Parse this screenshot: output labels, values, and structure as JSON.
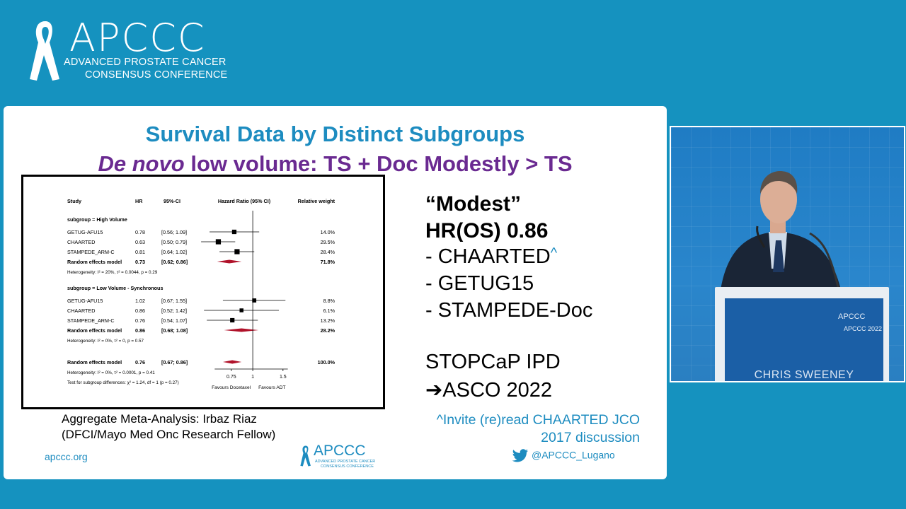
{
  "brand": {
    "name": "APCCC",
    "line1": "ADVANCED PROSTATE CANCER",
    "line2": "CONSENSUS CONFERENCE"
  },
  "slide": {
    "title": "Survival Data by Distinct Subgroups",
    "subtitle_italic": "De novo",
    "subtitle_rest": " low volume: TS + Doc Modestly > TS",
    "right_modest": "“Modest”",
    "right_hr": "HR(OS) 0.86",
    "right_b1": "- CHAARTED",
    "right_b1_caret": "^",
    "right_b2": "- GETUG15",
    "right_b3": "- STAMPEDE-Doc",
    "right_stop": "STOPCaP IPD",
    "right_asco": "➔ASCO 2022",
    "invite_l1": "^Invite (re)read CHAARTED JCO",
    "invite_l2": "2017 discussion",
    "caption_l1": "Aggregate Meta-Analysis: Irbaz Riaz",
    "caption_l2": "(DFCI/Mayo Med Onc Research Fellow)",
    "footer_url": "apccc.org",
    "footer_logo_big": "APCCC",
    "footer_logo_l1": "ADVANCED PROSTATE CANCER",
    "footer_logo_l2": "CONSENSUS CONFERENCE",
    "twitter": "@APCCC_Lugano"
  },
  "forest_plot": {
    "headers": {
      "study": "Study",
      "hr": "HR",
      "ci": "95%-CI",
      "plot": "Hazard Ratio (95% CI)",
      "weight": "Relative weight"
    },
    "groups": [
      {
        "label": "subgroup = High Volume",
        "rows": [
          {
            "study": "GETUG-AFU15",
            "hr": "0.78",
            "ci": "[0.56; 1.09]",
            "weight": "14.0%",
            "est": 0.78,
            "lo": 0.56,
            "hi": 1.09
          },
          {
            "study": "CHAARTED",
            "hr": "0.63",
            "ci": "[0.50; 0.79]",
            "weight": "29.5%",
            "est": 0.63,
            "lo": 0.5,
            "hi": 0.79
          },
          {
            "study": "STAMPEDE_ARM-C",
            "hr": "0.81",
            "ci": "[0.64; 1.02]",
            "weight": "28.4%",
            "est": 0.81,
            "lo": 0.64,
            "hi": 1.02
          }
        ],
        "pooled": {
          "label": "Random effects model",
          "hr": "0.73",
          "ci": "[0.62; 0.86]",
          "weight": "71.8%",
          "est": 0.73,
          "lo": 0.62,
          "hi": 0.86
        },
        "het": "Heterogeneity: I² = 20%, τ² = 0.0044, p = 0.29"
      },
      {
        "label": "subgroup = Low Volume - Synchronous",
        "rows": [
          {
            "study": "GETUG-AFU15",
            "hr": "1.02",
            "ci": "[0.67; 1.55]",
            "weight": "8.8%",
            "est": 1.02,
            "lo": 0.67,
            "hi": 1.55
          },
          {
            "study": "CHAARTED",
            "hr": "0.86",
            "ci": "[0.52; 1.42]",
            "weight": "6.1%",
            "est": 0.86,
            "lo": 0.52,
            "hi": 1.42
          },
          {
            "study": "STAMPEDE_ARM-C",
            "hr": "0.76",
            "ci": "[0.54; 1.07]",
            "weight": "13.2%",
            "est": 0.76,
            "lo": 0.54,
            "hi": 1.07
          }
        ],
        "pooled": {
          "label": "Random effects model",
          "hr": "0.86",
          "ci": "[0.68; 1.08]",
          "weight": "28.2%",
          "est": 0.86,
          "lo": 0.68,
          "hi": 1.08
        },
        "het": "Heterogeneity: I² = 0%, τ² = 0, p = 0.57"
      }
    ],
    "overall": {
      "label": "Random effects model",
      "hr": "0.76",
      "ci": "[0.67; 0.86]",
      "weight": "100.0%",
      "est": 0.76,
      "lo": 0.67,
      "hi": 0.86
    },
    "overall_het": "Heterogeneity: I² = 0%, τ² = 0.0001, p = 0.41",
    "subgroup_test": "Test for subgroup differences: χ² = 1.24, df = 1 (p = 0.27)",
    "ticks": [
      "0.75",
      "1",
      "1.5"
    ],
    "tick_values": [
      0.75,
      1,
      1.5
    ],
    "favours_left": "Favours Docetaxel",
    "favours_right": "Favours ADT",
    "null_line": 1
  },
  "video": {
    "podium_logo": "APCCC",
    "podium_year": "APCCC 2022",
    "speaker_name": "CHRIS SWEENEY"
  },
  "colors": {
    "background": "#1592bf",
    "title_blue": "#1d8cc0",
    "title_purple": "#6a2a91",
    "diamond": "#b0122a"
  }
}
